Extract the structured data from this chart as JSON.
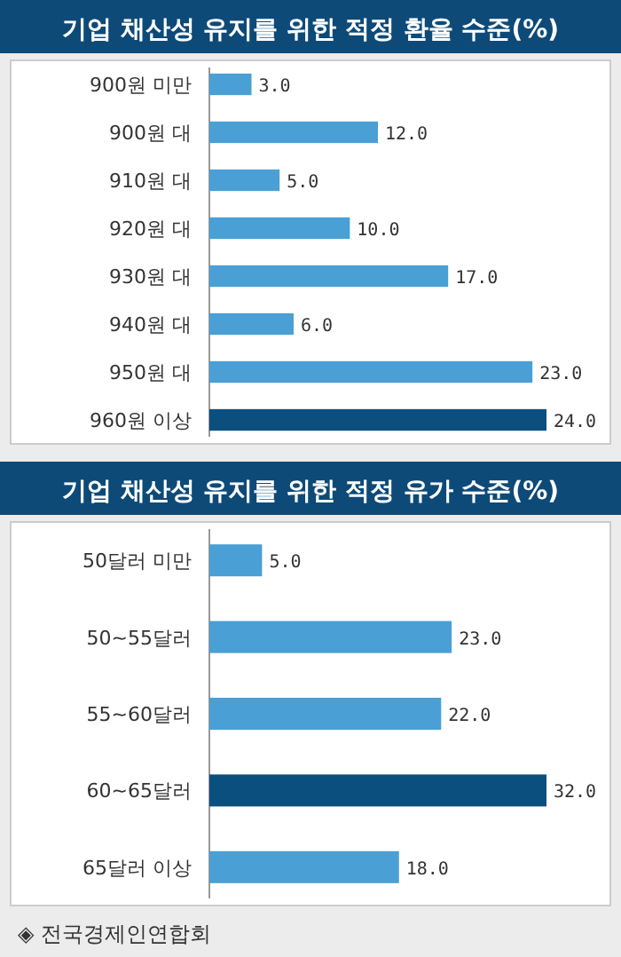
{
  "chart_data": [
    {
      "type": "bar",
      "orientation": "horizontal",
      "title": "기업 채산성 유지를 위한 적정 환율 수준(%)",
      "categories": [
        "900원 미만",
        "900원 대",
        "910원 대",
        "920원 대",
        "930원 대",
        "940원 대",
        "950원 대",
        "960원 이상"
      ],
      "values": [
        3,
        12,
        5,
        10,
        17,
        6,
        23,
        24
      ],
      "value_labels": [
        "3.0",
        "12.0",
        "5.0",
        "10.0",
        "17.0",
        "6.0",
        "23.0",
        "24.0"
      ],
      "colors": [
        "#4a9fd5",
        "#4a9fd5",
        "#4a9fd5",
        "#4a9fd5",
        "#4a9fd5",
        "#4a9fd5",
        "#4a9fd5",
        "#0b4f7e"
      ]
    },
    {
      "type": "bar",
      "orientation": "horizontal",
      "title": "기업 채산성 유지를 위한 적정 유가 수준(%)",
      "categories": [
        "50달러 미만",
        "50~55달러",
        "55~60달러",
        "60~65달러",
        "65달러 이상"
      ],
      "values": [
        5,
        23,
        22,
        32,
        18
      ],
      "value_labels": [
        "5.0",
        "23.0",
        "22.0",
        "32.0",
        "18.0"
      ],
      "colors": [
        "#4a9fd5",
        "#4a9fd5",
        "#4a9fd5",
        "#0b4f7e",
        "#4a9fd5"
      ],
      "annotations": [
        "◈ 전국경제인연합회"
      ]
    }
  ]
}
